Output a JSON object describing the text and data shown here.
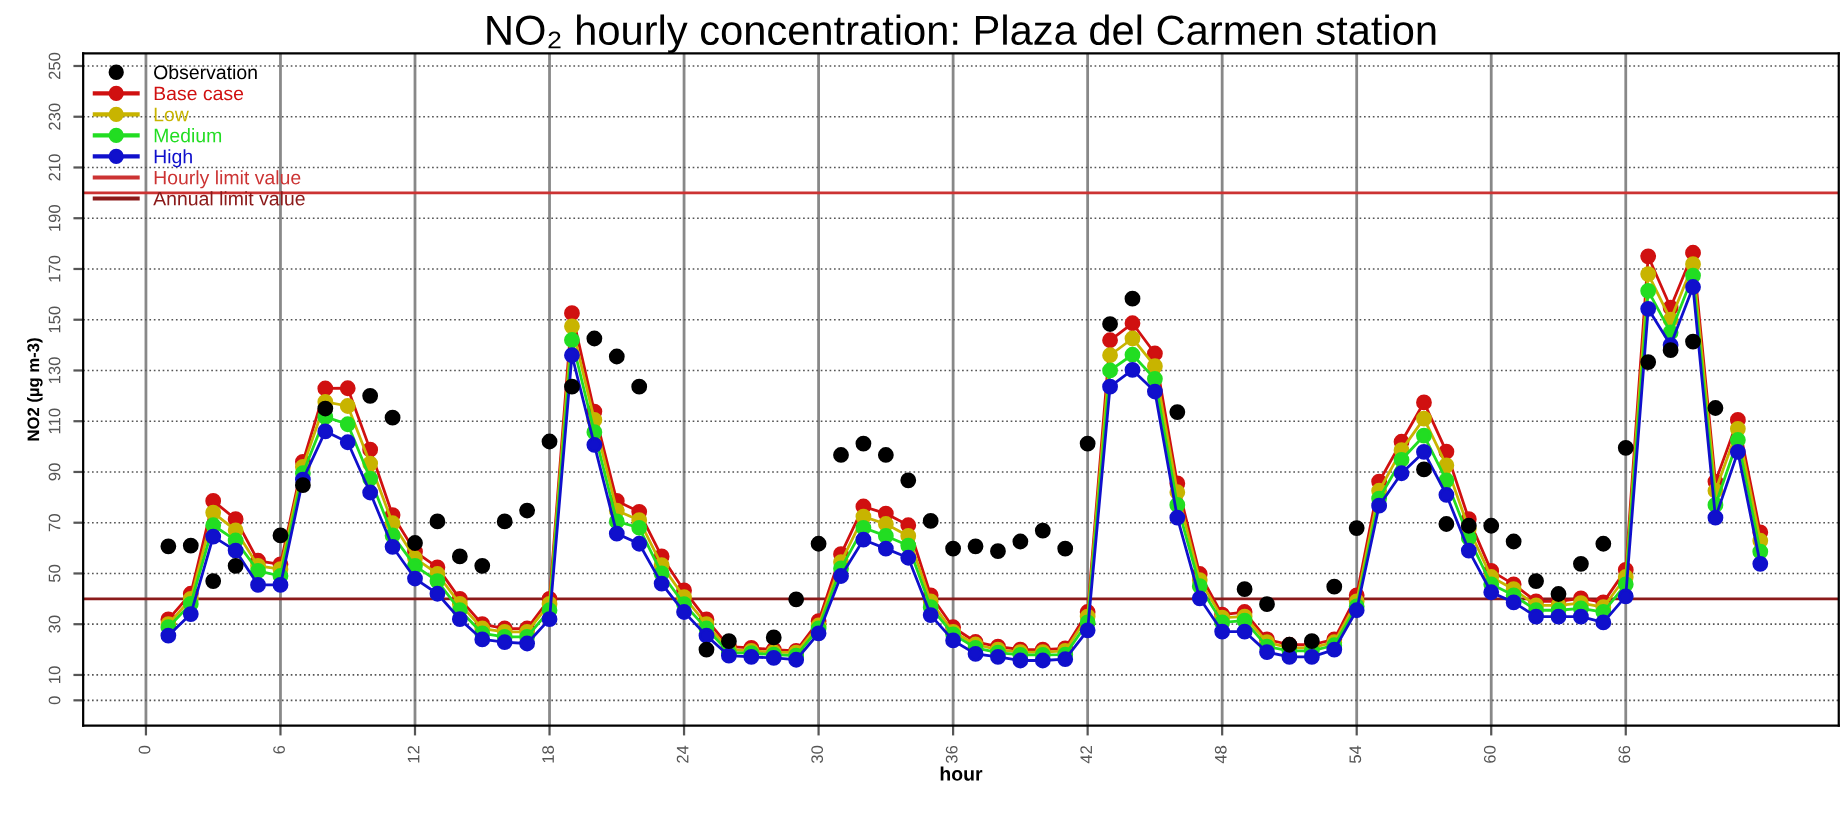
{
  "chart_data": {
    "type": "line",
    "title": "NO₂ hourly concentration: Plaza del Carmen station",
    "xlabel": "hour",
    "ylabel": "NO2 (µg m-3)",
    "x": [
      1,
      2,
      3,
      4,
      5,
      6,
      7,
      8,
      9,
      10,
      11,
      12,
      13,
      14,
      15,
      16,
      17,
      18,
      19,
      20,
      21,
      22,
      23,
      24,
      25,
      26,
      27,
      28,
      29,
      30,
      31,
      32,
      33,
      34,
      35,
      36,
      37,
      38,
      39,
      40,
      41,
      42,
      43,
      44,
      45,
      46,
      47,
      48,
      49,
      50,
      51,
      52,
      53,
      54,
      55,
      56,
      57,
      58,
      59,
      60,
      61,
      62,
      63,
      64,
      65,
      66,
      67,
      68,
      69,
      70,
      71,
      72
    ],
    "series": [
      {
        "name": "Observation",
        "type": "scatter",
        "color": "#000000",
        "values": [
          60.7,
          61,
          47,
          53,
          null,
          65,
          84.8,
          115,
          null,
          120,
          111.4,
          62,
          70.5,
          56.7,
          53,
          70.5,
          74.8,
          102,
          123.6,
          142.6,
          135.5,
          123.6,
          null,
          null,
          20,
          23.3,
          null,
          24.8,
          39.8,
          61.7,
          96.7,
          101.2,
          96.7,
          86.7,
          70.7,
          59.8,
          60.7,
          58.8,
          62.6,
          66.9,
          59.8,
          101.2,
          148.3,
          158.3,
          null,
          113.6,
          null,
          null,
          43.8,
          37.9,
          21.9,
          23.3,
          44.8,
          67.9,
          null,
          null,
          91,
          69.5,
          68.8,
          68.8,
          62.6,
          47,
          41.9,
          53.8,
          61.7,
          99.5,
          133.3,
          138,
          141.4,
          115.2,
          null,
          null
        ]
      },
      {
        "name": "Base case",
        "color": "#d01010",
        "values": [
          31.9,
          42,
          78.6,
          71.4,
          55,
          53.6,
          94,
          122.9,
          123,
          98.8,
          73,
          58.6,
          52.4,
          40,
          30,
          28.3,
          28.3,
          40,
          152.6,
          113.8,
          78.6,
          74.3,
          56.7,
          43.3,
          31.9,
          21.2,
          20.7,
          20,
          19.5,
          31.2,
          57.6,
          76.4,
          73.6,
          69,
          41.4,
          28.8,
          23,
          21.2,
          20,
          20,
          20.5,
          34.8,
          141.9,
          148.6,
          136.7,
          85.5,
          49.8,
          33.8,
          34.8,
          24,
          21.9,
          21.9,
          24,
          41.4,
          86.2,
          101.9,
          117.4,
          98,
          71.4,
          51,
          45.7,
          39,
          39,
          40.2,
          38.6,
          51.4,
          175,
          154.8,
          176.4,
          86.2,
          110.5,
          66.2
        ]
      },
      {
        "name": "Low",
        "color": "#c8b400",
        "values": [
          30,
          40,
          74,
          67,
          53,
          51.7,
          92,
          117.6,
          116,
          93.3,
          69.8,
          56,
          49.8,
          38,
          28.3,
          27,
          27,
          38,
          147.4,
          110.5,
          74.8,
          71,
          53.3,
          40.7,
          30,
          20,
          19.5,
          19,
          18.8,
          29.5,
          54.5,
          72.4,
          69.5,
          64.8,
          39,
          27,
          22,
          20,
          19,
          19,
          19.5,
          33,
          136,
          142.6,
          131.7,
          82,
          47.4,
          32.6,
          33,
          22.9,
          20.7,
          20.7,
          22.9,
          39,
          82.6,
          98.6,
          111,
          92.6,
          67.6,
          48.6,
          43.8,
          37.4,
          37.4,
          38.3,
          36.7,
          48.6,
          168,
          150,
          171.9,
          82.6,
          107,
          62.9
        ]
      },
      {
        "name": "Medium",
        "color": "#22dd22",
        "values": [
          28.8,
          38,
          69,
          63,
          51,
          49,
          89.5,
          111.7,
          108.8,
          87.4,
          65,
          53,
          47,
          35.5,
          26.4,
          25,
          25,
          35.5,
          142,
          105.7,
          70.5,
          68,
          50,
          37.9,
          28.3,
          18.8,
          18.6,
          18,
          17.6,
          28.3,
          52,
          68,
          64.8,
          61,
          36.7,
          26,
          20.7,
          18.8,
          17.9,
          17.9,
          18,
          30.7,
          130,
          136.2,
          126.7,
          77,
          45,
          30.7,
          31.4,
          21.2,
          19.5,
          19.5,
          21.7,
          37,
          79.5,
          94.8,
          104.3,
          86.7,
          64,
          45.7,
          41.4,
          35.5,
          35.5,
          36.2,
          34.8,
          45.7,
          161.4,
          145,
          167.4,
          77,
          102.6,
          58.6
        ]
      },
      {
        "name": "High",
        "color": "#1010cc",
        "values": [
          25.5,
          34,
          64.5,
          59,
          45.5,
          45.5,
          87,
          106,
          101.7,
          81.9,
          60.5,
          48,
          42,
          32,
          24,
          22.9,
          22.4,
          32,
          136,
          100.7,
          65.7,
          61.7,
          46,
          34.8,
          25.5,
          17.6,
          17.1,
          16.7,
          16,
          26.4,
          49,
          63.3,
          59.8,
          56.2,
          33.6,
          23.6,
          18.3,
          17.1,
          15.7,
          15.7,
          16.2,
          27.6,
          123.6,
          130.2,
          121.7,
          72,
          40.2,
          27.1,
          27.1,
          19,
          17.1,
          17.1,
          20,
          35.5,
          76.7,
          89.5,
          97.9,
          81,
          59,
          42.6,
          38.6,
          33,
          33,
          33,
          30.7,
          41,
          154.3,
          140,
          162.9,
          72,
          97.9,
          53.8
        ]
      }
    ],
    "ref_lines": [
      {
        "axis": "y",
        "value": 200,
        "label": "Hourly limit value",
        "color": "#cc3333"
      },
      {
        "axis": "y",
        "value": 40,
        "label": "Annual limit value",
        "color": "#8b1a1a"
      }
    ],
    "xlim": [
      -2.8,
      75.5
    ],
    "xticks": [
      0,
      6,
      12,
      18,
      24,
      30,
      36,
      42,
      48,
      54,
      60,
      66
    ],
    "ylim": [
      -10,
      255
    ],
    "yticks": [
      0,
      10,
      30,
      50,
      70,
      90,
      110,
      130,
      150,
      170,
      190,
      210,
      230,
      250
    ],
    "marker": "circle",
    "line_style": "solid",
    "grid": true,
    "legend": "top left"
  }
}
